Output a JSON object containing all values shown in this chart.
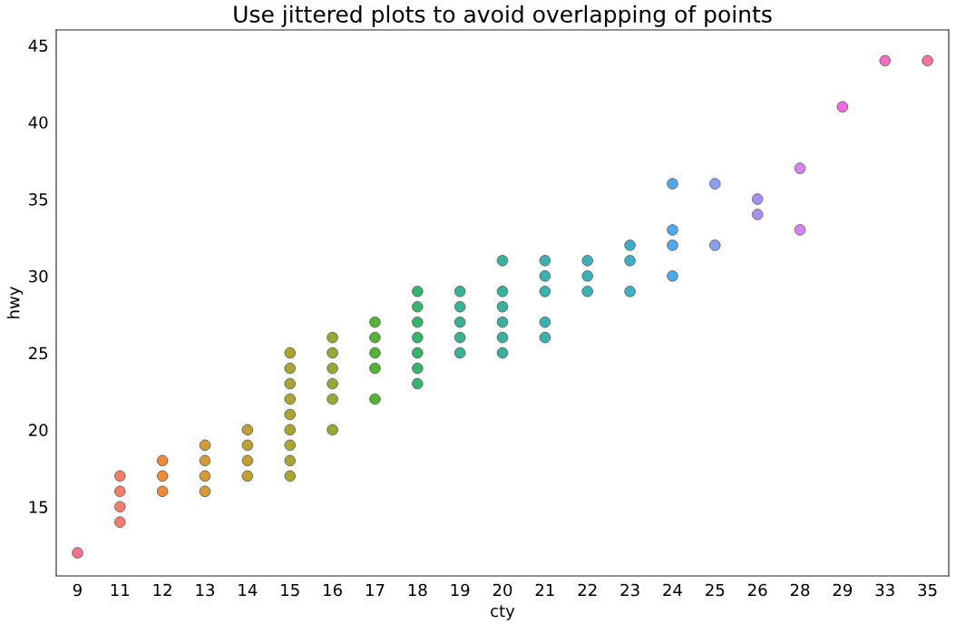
{
  "chart_data": {
    "type": "scatter",
    "title": "Use jittered plots to avoid overlapping of points",
    "xlabel": "cty",
    "ylabel": "hwy",
    "categories": [
      "9",
      "11",
      "12",
      "13",
      "14",
      "15",
      "16",
      "17",
      "18",
      "19",
      "20",
      "21",
      "22",
      "23",
      "24",
      "25",
      "26",
      "28",
      "29",
      "33",
      "35"
    ],
    "ylim": [
      10.5,
      46
    ],
    "yticks": [
      15,
      20,
      25,
      30,
      35,
      40,
      45
    ],
    "grid": false,
    "marker": "circle",
    "series": [
      {
        "x": [
          "9"
        ],
        "values": [
          12
        ],
        "color": "#f77189"
      },
      {
        "x": [
          "11",
          "11",
          "11",
          "11"
        ],
        "values": [
          14,
          15,
          16,
          17
        ],
        "color": "#f27d68"
      },
      {
        "x": [
          "12",
          "12",
          "12"
        ],
        "values": [
          16,
          17,
          18
        ],
        "color": "#ec8a3a"
      },
      {
        "x": [
          "13",
          "13",
          "13",
          "13"
        ],
        "values": [
          16,
          17,
          18,
          19
        ],
        "color": "#d49a34"
      },
      {
        "x": [
          "14",
          "14",
          "14",
          "14"
        ],
        "values": [
          17,
          18,
          19,
          20
        ],
        "color": "#bfa133"
      },
      {
        "x": [
          "15",
          "15",
          "15",
          "15",
          "15",
          "15",
          "15",
          "15",
          "15"
        ],
        "values": [
          17,
          18,
          19,
          20,
          21,
          22,
          23,
          24,
          25
        ],
        "color": "#aaa531"
      },
      {
        "x": [
          "16",
          "16",
          "16",
          "16",
          "16",
          "16"
        ],
        "values": [
          20,
          22,
          23,
          24,
          25,
          26
        ],
        "color": "#92ab32"
      },
      {
        "x": [
          "17",
          "17",
          "17",
          "17",
          "17"
        ],
        "values": [
          22,
          24,
          25,
          26,
          27
        ],
        "color": "#52b433"
      },
      {
        "x": [
          "18",
          "18",
          "18",
          "18",
          "18",
          "18",
          "18"
        ],
        "values": [
          23,
          24,
          25,
          26,
          27,
          28,
          29
        ],
        "color": "#35b56c"
      },
      {
        "x": [
          "19",
          "19",
          "19",
          "19",
          "19"
        ],
        "values": [
          25,
          26,
          27,
          28,
          29
        ],
        "color": "#36b390"
      },
      {
        "x": [
          "20",
          "20",
          "20",
          "20",
          "20",
          "20"
        ],
        "values": [
          25,
          26,
          27,
          28,
          29,
          31
        ],
        "color": "#37b29f"
      },
      {
        "x": [
          "21",
          "21",
          "21",
          "21",
          "21"
        ],
        "values": [
          26,
          27,
          29,
          30,
          31
        ],
        "color": "#38b3ad"
      },
      {
        "x": [
          "22",
          "22",
          "22"
        ],
        "values": [
          29,
          30,
          31
        ],
        "color": "#39b3b6"
      },
      {
        "x": [
          "23",
          "23",
          "23"
        ],
        "values": [
          29,
          31,
          32
        ],
        "color": "#3bb0c6"
      },
      {
        "x": [
          "24",
          "24",
          "24",
          "24"
        ],
        "values": [
          30,
          32,
          33,
          36
        ],
        "color": "#4ea9ea"
      },
      {
        "x": [
          "25",
          "25"
        ],
        "values": [
          32,
          36
        ],
        "color": "#8c9df2"
      },
      {
        "x": [
          "26",
          "26"
        ],
        "values": [
          34,
          35
        ],
        "color": "#a98ef2"
      },
      {
        "x": [
          "28",
          "28"
        ],
        "values": [
          33,
          37
        ],
        "color": "#d883ef"
      },
      {
        "x": [
          "29"
        ],
        "values": [
          41
        ],
        "color": "#f46ae0"
      },
      {
        "x": [
          "33"
        ],
        "values": [
          44
        ],
        "color": "#f56ebf"
      },
      {
        "x": [
          "35"
        ],
        "values": [
          44
        ],
        "color": "#f6719f"
      }
    ]
  }
}
